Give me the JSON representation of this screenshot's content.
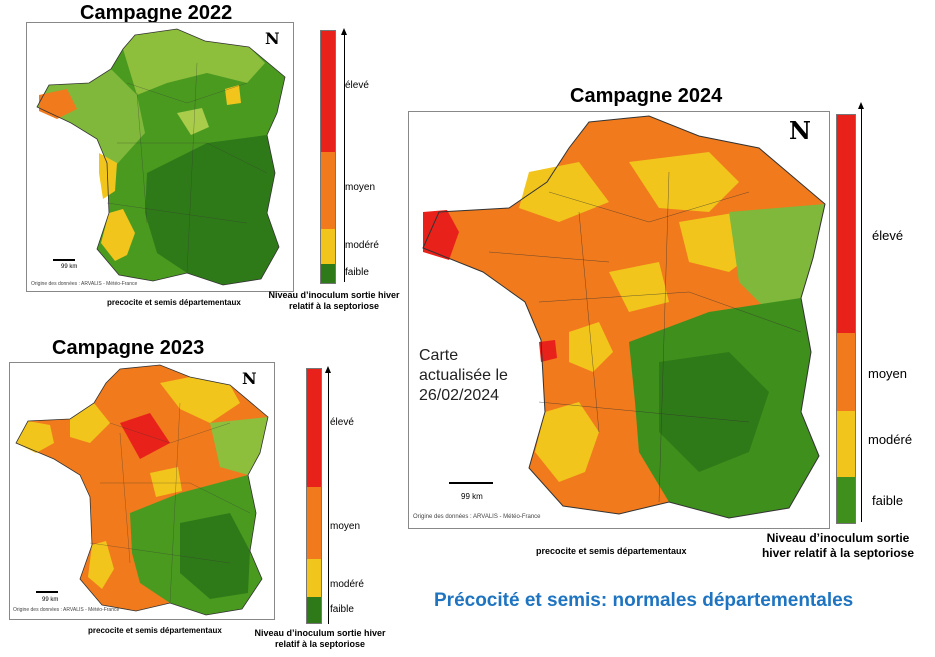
{
  "maps": {
    "m2022": {
      "title": "Campagne 2022",
      "scale": "99 km",
      "origin": "Origine des données : ARVALIS - Météo-France",
      "caption": "precocite et semis départementaux",
      "legend_title_line1": "Niveau d’inoculum sortie hiver",
      "legend_title_line2": "relatif à la septoriose"
    },
    "m2023": {
      "title": "Campagne 2023",
      "scale": "99 km",
      "origin": "Origine des données : ARVALIS - Météo-France",
      "caption": "precocite et semis départementaux",
      "legend_title_line1": "Niveau d’inoculum sortie hiver",
      "legend_title_line2": "relatif à la septoriose"
    },
    "m2024": {
      "title": "Campagne 2024",
      "scale": "99 km",
      "origin": "Origine des données : ARVALIS - Météo-France",
      "caption": "precocite et semis départementaux",
      "legend_title_line1": "Niveau d’inoculum  sortie",
      "legend_title_line2": "hiver relatif à la septoriose",
      "note_line1": "Carte",
      "note_line2": "actualisée le",
      "note_line3": "26/02/2024"
    }
  },
  "legend": {
    "high": "élevé",
    "medium": "moyen",
    "moderate": "modéré",
    "low": "faible",
    "north": "N"
  },
  "colors": {
    "high": "#e8221a",
    "medium": "#f07a1c",
    "moderate": "#f2c51c",
    "low": "#3f8f1c",
    "low_light": "#7fb83a",
    "accent": "#1e74c0"
  },
  "subtitle": "Précocité et semis: normales départementales"
}
